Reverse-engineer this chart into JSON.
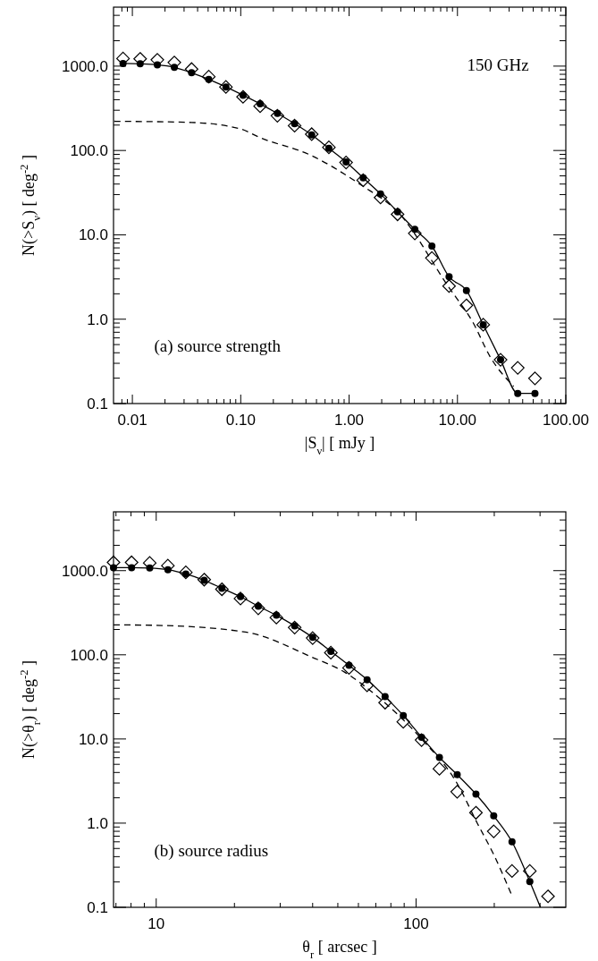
{
  "chart_data": [
    {
      "type": "line",
      "log": "xy",
      "xlabel": "|S$_{ν}$|  [ mJy ]",
      "ylabel": "N(>S$_{ν}$)  [ deg$^{-2}$ ]",
      "annotations": [
        "150 GHz",
        "(a) source strength"
      ],
      "xlim": [
        0.0067,
        100
      ],
      "ylim": [
        0.1,
        5000
      ],
      "xticks": [
        {
          "value": 0.008,
          "label": null
        },
        {
          "value": 0.009,
          "label": null
        },
        0.01,
        {
          "value": 0.02,
          "label": null
        },
        {
          "value": 0.03,
          "label": null
        },
        {
          "value": 0.04,
          "label": null
        },
        {
          "value": 0.05,
          "label": null
        },
        {
          "value": 0.06,
          "label": null
        },
        {
          "value": 0.07,
          "label": null
        },
        {
          "value": 0.08,
          "label": null
        },
        {
          "value": 0.09,
          "label": null
        },
        {
          "value": 0.1,
          "label": "0.10"
        },
        {
          "value": 0.2,
          "label": null
        },
        {
          "value": 0.3,
          "label": null
        },
        {
          "value": 0.4,
          "label": null
        },
        {
          "value": 0.5,
          "label": null
        },
        {
          "value": 0.6,
          "label": null
        },
        {
          "value": 0.7,
          "label": null
        },
        {
          "value": 0.8,
          "label": null
        },
        {
          "value": 0.9,
          "label": null
        },
        {
          "value": 1,
          "label": "1.00"
        },
        {
          "value": 2,
          "label": null
        },
        {
          "value": 3,
          "label": null
        },
        {
          "value": 4,
          "label": null
        },
        {
          "value": 5,
          "label": null
        },
        {
          "value": 6,
          "label": null
        },
        {
          "value": 7,
          "label": null
        },
        {
          "value": 8,
          "label": null
        },
        {
          "value": 9,
          "label": null
        },
        {
          "value": 10,
          "label": "10.00"
        },
        {
          "value": 20,
          "label": null
        },
        {
          "value": 30,
          "label": null
        },
        {
          "value": 40,
          "label": null
        },
        {
          "value": 50,
          "label": null
        },
        {
          "value": 60,
          "label": null
        },
        {
          "value": 70,
          "label": null
        },
        {
          "value": 80,
          "label": null
        },
        {
          "value": 90,
          "label": null
        },
        {
          "value": 100,
          "label": "100.00"
        }
      ],
      "yticks": [
        0.1,
        {
          "value": 0.2,
          "label": null
        },
        {
          "value": 0.3,
          "label": null
        },
        {
          "value": 0.4,
          "label": null
        },
        {
          "value": 0.5,
          "label": null
        },
        {
          "value": 0.6,
          "label": null
        },
        {
          "value": 0.7,
          "label": null
        },
        {
          "value": 0.8,
          "label": null
        },
        {
          "value": 0.9,
          "label": null
        },
        {
          "value": 1,
          "label": "1.0"
        },
        {
          "value": 2,
          "label": null
        },
        {
          "value": 3,
          "label": null
        },
        {
          "value": 4,
          "label": null
        },
        {
          "value": 5,
          "label": null
        },
        {
          "value": 6,
          "label": null
        },
        {
          "value": 7,
          "label": null
        },
        {
          "value": 8,
          "label": null
        },
        {
          "value": 9,
          "label": null
        },
        {
          "value": 10,
          "label": "10.0"
        },
        {
          "value": 20,
          "label": null
        },
        {
          "value": 30,
          "label": null
        },
        {
          "value": 40,
          "label": null
        },
        {
          "value": 50,
          "label": null
        },
        {
          "value": 60,
          "label": null
        },
        {
          "value": 70,
          "label": null
        },
        {
          "value": 80,
          "label": null
        },
        {
          "value": 90,
          "label": null
        },
        {
          "value": 100,
          "label": "100.0"
        },
        {
          "value": 200,
          "label": null
        },
        {
          "value": 300,
          "label": null
        },
        {
          "value": 400,
          "label": null
        },
        {
          "value": 500,
          "label": null
        },
        {
          "value": 600,
          "label": null
        },
        {
          "value": 700,
          "label": null
        },
        {
          "value": 800,
          "label": null
        },
        {
          "value": 900,
          "label": null
        },
        {
          "value": 1000,
          "label": "1000.0"
        },
        {
          "value": 2000,
          "label": null
        },
        {
          "value": 3000,
          "label": null
        },
        {
          "value": 4000,
          "label": null
        }
      ],
      "series": [
        {
          "type": "line",
          "color": "#000000",
          "line_style": "solid",
          "marker": "none",
          "x": [
            0.0082,
            0.0118,
            0.017,
            0.0244,
            0.0352,
            0.0507,
            0.073,
            0.105,
            0.151,
            0.218,
            0.314,
            0.452,
            0.651,
            0.938,
            1.35,
            1.95,
            2.8,
            4.04,
            5.81,
            8.37,
            12.1,
            17.3,
            25,
            36,
            51.9
          ],
          "values": [
            1075,
            1065,
            1036,
            965,
            835,
            697,
            566,
            452,
            357,
            275,
            208,
            153,
            106,
            73,
            47.3,
            30.6,
            18.7,
            11.6,
            7.36,
            3.18,
            2.19,
            0.86,
            0.33,
            0.132,
            0.132
          ]
        },
        {
          "type": "scatter",
          "color": "#000000",
          "marker": "circle",
          "x": [
            0.0082,
            0.0118,
            0.017,
            0.0244,
            0.0352,
            0.0507,
            0.073,
            0.105,
            0.151,
            0.218,
            0.314,
            0.452,
            0.651,
            0.938,
            1.35,
            1.95,
            2.8,
            4.04,
            5.81,
            8.37,
            12.1,
            17.3,
            25,
            36,
            51.9
          ],
          "values": [
            1075,
            1065,
            1036,
            965,
            835,
            697,
            566,
            452,
            357,
            275,
            208,
            153,
            106,
            73,
            47.3,
            30.6,
            18.7,
            11.6,
            7.36,
            3.18,
            2.19,
            0.86,
            0.33,
            0.132,
            0.132
          ]
        },
        {
          "type": "scatter",
          "color": "#000000",
          "marker": "diamond",
          "x": [
            0.0082,
            0.0118,
            0.017,
            0.0244,
            0.0352,
            0.0507,
            0.073,
            0.105,
            0.151,
            0.218,
            0.314,
            0.452,
            0.651,
            0.938,
            1.35,
            1.95,
            2.8,
            4.04,
            5.81,
            8.37,
            12.1,
            17.3,
            25,
            36,
            51.9
          ],
          "values": [
            1231,
            1220,
            1188,
            1104,
            922,
            750,
            566,
            432,
            335,
            258,
            197,
            156,
            109,
            72,
            44.4,
            27.7,
            17.5,
            10.4,
            5.31,
            2.47,
            1.46,
            0.86,
            0.33,
            0.265,
            0.199
          ]
        },
        {
          "type": "line",
          "color": "#000000",
          "line_style": "dashed",
          "marker": "none",
          "x": [
            0.0068,
            0.01,
            0.035,
            0.1,
            0.147,
            0.45,
            1.3,
            2.8,
            8.3,
            14,
            20,
            33
          ],
          "values": [
            222,
            221,
            215,
            180,
            144,
            87,
            38.7,
            18.8,
            2.4,
            0.9,
            0.36,
            0.16
          ]
        }
      ]
    },
    {
      "type": "line",
      "log": "xy",
      "xlabel": "θ$_{r}$  [ arcsec ]",
      "ylabel": "N(>θ$_{r}$)  [ deg$^{-2}$ ]",
      "annotations": [
        "(b) source radius"
      ],
      "xlim": [
        6.85,
        377
      ],
      "ylim": [
        0.1,
        5000
      ],
      "xticks": [
        {
          "value": 7,
          "label": null
        },
        {
          "value": 8,
          "label": null
        },
        {
          "value": 9,
          "label": null
        },
        10,
        {
          "value": 20,
          "label": null
        },
        {
          "value": 30,
          "label": null
        },
        {
          "value": 40,
          "label": null
        },
        {
          "value": 50,
          "label": null
        },
        {
          "value": 60,
          "label": null
        },
        {
          "value": 70,
          "label": null
        },
        {
          "value": 80,
          "label": null
        },
        {
          "value": 90,
          "label": null
        },
        100,
        {
          "value": 200,
          "label": null
        },
        {
          "value": 300,
          "label": null
        }
      ],
      "yticks": [
        0.1,
        {
          "value": 0.2,
          "label": null
        },
        {
          "value": 0.3,
          "label": null
        },
        {
          "value": 0.4,
          "label": null
        },
        {
          "value": 0.5,
          "label": null
        },
        {
          "value": 0.6,
          "label": null
        },
        {
          "value": 0.7,
          "label": null
        },
        {
          "value": 0.8,
          "label": null
        },
        {
          "value": 0.9,
          "label": null
        },
        {
          "value": 1,
          "label": "1.0"
        },
        {
          "value": 2,
          "label": null
        },
        {
          "value": 3,
          "label": null
        },
        {
          "value": 4,
          "label": null
        },
        {
          "value": 5,
          "label": null
        },
        {
          "value": 6,
          "label": null
        },
        {
          "value": 7,
          "label": null
        },
        {
          "value": 8,
          "label": null
        },
        {
          "value": 9,
          "label": null
        },
        {
          "value": 10,
          "label": "10.0"
        },
        {
          "value": 20,
          "label": null
        },
        {
          "value": 30,
          "label": null
        },
        {
          "value": 40,
          "label": null
        },
        {
          "value": 50,
          "label": null
        },
        {
          "value": 60,
          "label": null
        },
        {
          "value": 70,
          "label": null
        },
        {
          "value": 80,
          "label": null
        },
        {
          "value": 90,
          "label": null
        },
        {
          "value": 100,
          "label": "100.0"
        },
        {
          "value": 200,
          "label": null
        },
        {
          "value": 300,
          "label": null
        },
        {
          "value": 400,
          "label": null
        },
        {
          "value": 500,
          "label": null
        },
        {
          "value": 600,
          "label": null
        },
        {
          "value": 700,
          "label": null
        },
        {
          "value": 800,
          "label": null
        },
        {
          "value": 900,
          "label": null
        },
        {
          "value": 1000,
          "label": "1000.0"
        },
        {
          "value": 2000,
          "label": null
        },
        {
          "value": 3000,
          "label": null
        },
        {
          "value": 4000,
          "label": null
        }
      ],
      "series": [
        {
          "type": "line",
          "color": "#000000",
          "line_style": "solid",
          "marker": "none",
          "x": [
            6.85,
            8.04,
            9.44,
            11.09,
            13,
            15.3,
            17.9,
            21.1,
            24.7,
            29,
            34.1,
            40,
            47,
            55.2,
            64.8,
            76,
            89.3,
            105,
            123,
            144,
            170,
            199,
            234,
            274,
            301
          ],
          "values": [
            1086,
            1086,
            1075,
            1027,
            913,
            767,
            618,
            492,
            378,
            295,
            221,
            161,
            110,
            75,
            50.6,
            31.8,
            19,
            10.5,
            6.03,
            3.77,
            2.21,
            1.22,
            0.6,
            0.202,
            0.1
          ]
        },
        {
          "type": "scatter",
          "color": "#000000",
          "marker": "circle",
          "x": [
            6.85,
            8.04,
            9.44,
            11.09,
            13,
            15.3,
            17.9,
            21.1,
            24.7,
            29,
            34.1,
            40,
            47,
            55.2,
            64.8,
            76,
            89.3,
            105,
            123,
            144,
            170,
            199,
            234,
            274
          ],
          "values": [
            1086,
            1086,
            1075,
            1027,
            913,
            767,
            618,
            492,
            378,
            295,
            221,
            161,
            110,
            75,
            50.6,
            31.8,
            19,
            10.5,
            6.03,
            3.77,
            2.21,
            1.22,
            0.6,
            0.202
          ]
        },
        {
          "type": "scatter",
          "color": "#000000",
          "marker": "diamond",
          "x": [
            6.85,
            8.04,
            9.44,
            11.09,
            13,
            15.3,
            17.9,
            21.1,
            24.7,
            29,
            34.1,
            40,
            47,
            55.2,
            64.8,
            76,
            89.3,
            105,
            123,
            144,
            170,
            199,
            234,
            274,
            322
          ],
          "values": [
            1255,
            1255,
            1233,
            1146,
            955,
            782,
            601,
            466,
            357,
            277,
            211,
            158,
            106,
            70,
            43.3,
            27,
            16,
            9.7,
            4.43,
            2.36,
            1.33,
            0.8,
            0.27,
            0.27,
            0.135
          ]
        },
        {
          "type": "line",
          "color": "#000000",
          "line_style": "dashed",
          "marker": "none",
          "x": [
            6.85,
            10,
            22.1,
            39.7,
            53.2,
            71.4,
            105,
            144,
            172,
            200,
            234
          ],
          "values": [
            227,
            224,
            186,
            94,
            62,
            31.5,
            10,
            2.95,
            1,
            0.41,
            0.137
          ]
        }
      ]
    }
  ]
}
